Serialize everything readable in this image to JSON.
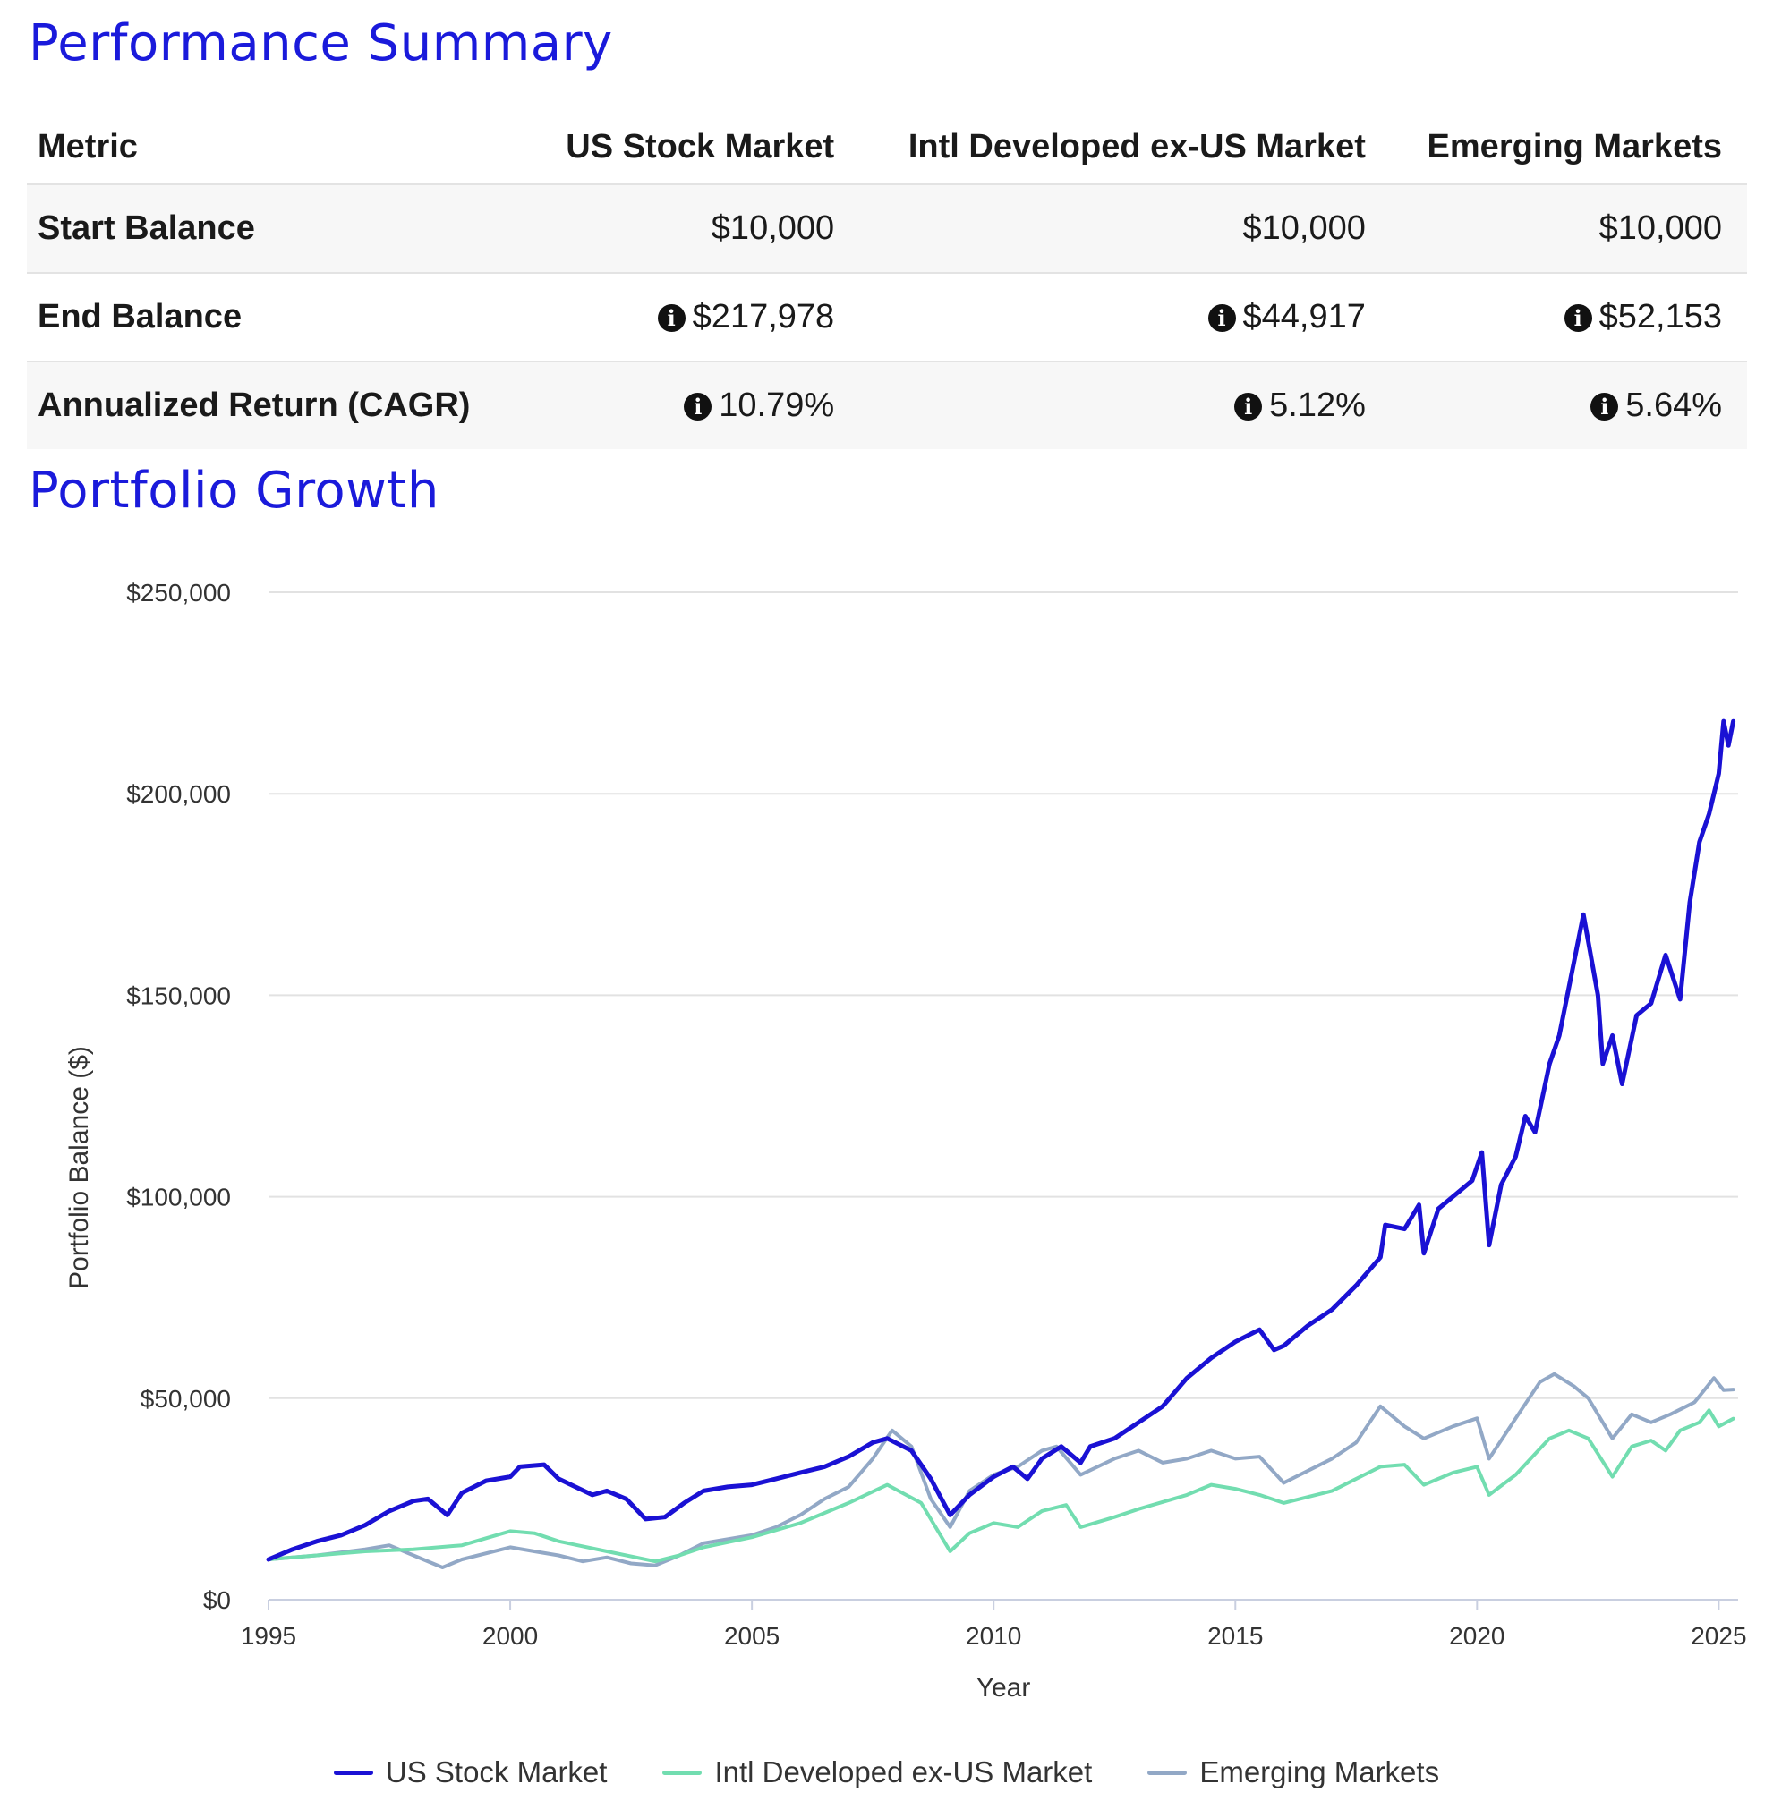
{
  "summary": {
    "title": "Performance Summary",
    "columns": [
      "Metric",
      "US Stock Market",
      "Intl Developed ex-US Market",
      "Emerging Markets"
    ],
    "rows": [
      {
        "label": "Start Balance",
        "values": [
          "$10,000",
          "$10,000",
          "$10,000"
        ],
        "info": false
      },
      {
        "label": "End Balance",
        "values": [
          "$217,978",
          "$44,917",
          "$52,153"
        ],
        "info": true
      },
      {
        "label": "Annualized Return (CAGR)",
        "values": [
          "10.79%",
          "5.12%",
          "5.64%"
        ],
        "info": true
      }
    ]
  },
  "growth": {
    "title": "Portfolio Growth"
  },
  "chart_data": {
    "type": "line",
    "title": "",
    "xlabel": "Year",
    "ylabel": "Portfolio Balance ($)",
    "xlim": [
      1995,
      2025.4
    ],
    "ylim": [
      0,
      250000
    ],
    "xticks": [
      1995,
      2000,
      2005,
      2010,
      2015,
      2020,
      2025
    ],
    "yticks": [
      0,
      50000,
      100000,
      150000,
      200000,
      250000
    ],
    "ytick_labels": [
      "$0",
      "$50,000",
      "$100,000",
      "$150,000",
      "$200,000",
      "$250,000"
    ],
    "grid": "horizontal",
    "legend_position": "bottom",
    "series": [
      {
        "name": "US Stock Market",
        "color": "#1a11d4",
        "points": [
          [
            1995,
            10000
          ],
          [
            1995.5,
            12500
          ],
          [
            1996,
            14500
          ],
          [
            1996.5,
            16000
          ],
          [
            1997,
            18500
          ],
          [
            1997.5,
            22000
          ],
          [
            1998,
            24500
          ],
          [
            1998.3,
            25000
          ],
          [
            1998.7,
            21000
          ],
          [
            1999,
            26500
          ],
          [
            1999.5,
            29500
          ],
          [
            2000,
            30500
          ],
          [
            2000.2,
            33000
          ],
          [
            2000.7,
            33500
          ],
          [
            2001,
            30000
          ],
          [
            2001.7,
            26000
          ],
          [
            2002,
            27000
          ],
          [
            2002.4,
            25000
          ],
          [
            2002.8,
            20000
          ],
          [
            2003.2,
            20500
          ],
          [
            2003.6,
            24000
          ],
          [
            2004,
            27000
          ],
          [
            2004.5,
            28000
          ],
          [
            2005,
            28500
          ],
          [
            2005.5,
            30000
          ],
          [
            2006,
            31500
          ],
          [
            2006.5,
            33000
          ],
          [
            2007,
            35500
          ],
          [
            2007.5,
            39000
          ],
          [
            2007.8,
            40000
          ],
          [
            2008.3,
            37000
          ],
          [
            2008.7,
            30000
          ],
          [
            2009.1,
            21000
          ],
          [
            2009.5,
            26000
          ],
          [
            2010,
            30500
          ],
          [
            2010.4,
            33000
          ],
          [
            2010.7,
            30000
          ],
          [
            2011,
            35000
          ],
          [
            2011.4,
            38000
          ],
          [
            2011.8,
            34000
          ],
          [
            2012,
            38000
          ],
          [
            2012.5,
            40000
          ],
          [
            2013,
            44000
          ],
          [
            2013.5,
            48000
          ],
          [
            2014,
            55000
          ],
          [
            2014.5,
            60000
          ],
          [
            2015,
            64000
          ],
          [
            2015.5,
            67000
          ],
          [
            2015.8,
            62000
          ],
          [
            2016,
            63000
          ],
          [
            2016.5,
            68000
          ],
          [
            2017,
            72000
          ],
          [
            2017.5,
            78000
          ],
          [
            2018,
            85000
          ],
          [
            2018.1,
            93000
          ],
          [
            2018.5,
            92000
          ],
          [
            2018.8,
            98000
          ],
          [
            2018.9,
            86000
          ],
          [
            2019.2,
            97000
          ],
          [
            2019.5,
            100000
          ],
          [
            2019.9,
            104000
          ],
          [
            2020.1,
            111000
          ],
          [
            2020.25,
            88000
          ],
          [
            2020.5,
            103000
          ],
          [
            2020.8,
            110000
          ],
          [
            2021,
            120000
          ],
          [
            2021.2,
            116000
          ],
          [
            2021.5,
            133000
          ],
          [
            2021.7,
            140000
          ],
          [
            2022,
            158000
          ],
          [
            2022.2,
            170000
          ],
          [
            2022.5,
            150000
          ],
          [
            2022.6,
            133000
          ],
          [
            2022.8,
            140000
          ],
          [
            2023,
            128000
          ],
          [
            2023.3,
            145000
          ],
          [
            2023.6,
            148000
          ],
          [
            2023.9,
            160000
          ],
          [
            2024.2,
            149000
          ],
          [
            2024.4,
            173000
          ],
          [
            2024.6,
            188000
          ],
          [
            2024.8,
            195000
          ],
          [
            2025,
            205000
          ],
          [
            2025.1,
            218000
          ],
          [
            2025.2,
            212000
          ],
          [
            2025.3,
            217978
          ]
        ]
      },
      {
        "name": "Intl Developed ex-US Market",
        "color": "#72ddb0",
        "points": [
          [
            1995,
            10000
          ],
          [
            1996,
            11000
          ],
          [
            1997,
            12000
          ],
          [
            1998,
            12500
          ],
          [
            1999,
            13500
          ],
          [
            2000,
            17000
          ],
          [
            2000.5,
            16500
          ],
          [
            2001,
            14500
          ],
          [
            2002,
            12000
          ],
          [
            2003,
            9500
          ],
          [
            2003.5,
            11000
          ],
          [
            2004,
            13000
          ],
          [
            2005,
            15500
          ],
          [
            2006,
            19000
          ],
          [
            2007,
            24000
          ],
          [
            2007.8,
            28500
          ],
          [
            2008.5,
            24000
          ],
          [
            2009.1,
            12000
          ],
          [
            2009.5,
            16500
          ],
          [
            2010,
            19000
          ],
          [
            2010.5,
            18000
          ],
          [
            2011,
            22000
          ],
          [
            2011.5,
            23500
          ],
          [
            2011.8,
            18000
          ],
          [
            2012.5,
            20500
          ],
          [
            2013,
            22500
          ],
          [
            2014,
            26000
          ],
          [
            2014.5,
            28500
          ],
          [
            2015,
            27500
          ],
          [
            2015.5,
            26000
          ],
          [
            2016,
            24000
          ],
          [
            2017,
            27000
          ],
          [
            2018,
            33000
          ],
          [
            2018.5,
            33500
          ],
          [
            2018.9,
            28500
          ],
          [
            2019.5,
            31500
          ],
          [
            2020,
            33000
          ],
          [
            2020.25,
            26000
          ],
          [
            2020.8,
            31000
          ],
          [
            2021.5,
            40000
          ],
          [
            2021.9,
            42000
          ],
          [
            2022.3,
            40000
          ],
          [
            2022.8,
            30500
          ],
          [
            2023.2,
            38000
          ],
          [
            2023.6,
            39500
          ],
          [
            2023.9,
            37000
          ],
          [
            2024.2,
            42000
          ],
          [
            2024.6,
            44000
          ],
          [
            2024.8,
            47000
          ],
          [
            2025,
            43000
          ],
          [
            2025.3,
            44917
          ]
        ]
      },
      {
        "name": "Emerging Markets",
        "color": "#92a8c6",
        "points": [
          [
            1995,
            10000
          ],
          [
            1996,
            11000
          ],
          [
            1997,
            12500
          ],
          [
            1997.5,
            13500
          ],
          [
            1998,
            11000
          ],
          [
            1998.6,
            8000
          ],
          [
            1999,
            10000
          ],
          [
            2000,
            13000
          ],
          [
            2000.5,
            12000
          ],
          [
            2001,
            11000
          ],
          [
            2001.5,
            9500
          ],
          [
            2002,
            10500
          ],
          [
            2002.5,
            9000
          ],
          [
            2003,
            8500
          ],
          [
            2003.5,
            11000
          ],
          [
            2004,
            14000
          ],
          [
            2005,
            16000
          ],
          [
            2005.5,
            18000
          ],
          [
            2006,
            21000
          ],
          [
            2006.5,
            25000
          ],
          [
            2007,
            28000
          ],
          [
            2007.5,
            35000
          ],
          [
            2007.9,
            42000
          ],
          [
            2008.3,
            38000
          ],
          [
            2008.7,
            25000
          ],
          [
            2009.1,
            18000
          ],
          [
            2009.5,
            27000
          ],
          [
            2010,
            31000
          ],
          [
            2010.5,
            33000
          ],
          [
            2011,
            37000
          ],
          [
            2011.3,
            38000
          ],
          [
            2011.8,
            31000
          ],
          [
            2012.5,
            35000
          ],
          [
            2013,
            37000
          ],
          [
            2013.5,
            34000
          ],
          [
            2014,
            35000
          ],
          [
            2014.5,
            37000
          ],
          [
            2015,
            35000
          ],
          [
            2015.5,
            35500
          ],
          [
            2016,
            29000
          ],
          [
            2016.5,
            32000
          ],
          [
            2017,
            35000
          ],
          [
            2017.5,
            39000
          ],
          [
            2018,
            48000
          ],
          [
            2018.5,
            43000
          ],
          [
            2018.9,
            40000
          ],
          [
            2019.5,
            43000
          ],
          [
            2020,
            45000
          ],
          [
            2020.25,
            35000
          ],
          [
            2020.8,
            45000
          ],
          [
            2021.3,
            54000
          ],
          [
            2021.6,
            56000
          ],
          [
            2022,
            53000
          ],
          [
            2022.3,
            50000
          ],
          [
            2022.8,
            40000
          ],
          [
            2023.2,
            46000
          ],
          [
            2023.6,
            44000
          ],
          [
            2024,
            46000
          ],
          [
            2024.5,
            49000
          ],
          [
            2024.9,
            55000
          ],
          [
            2025.1,
            52000
          ],
          [
            2025.3,
            52153
          ]
        ]
      }
    ]
  }
}
